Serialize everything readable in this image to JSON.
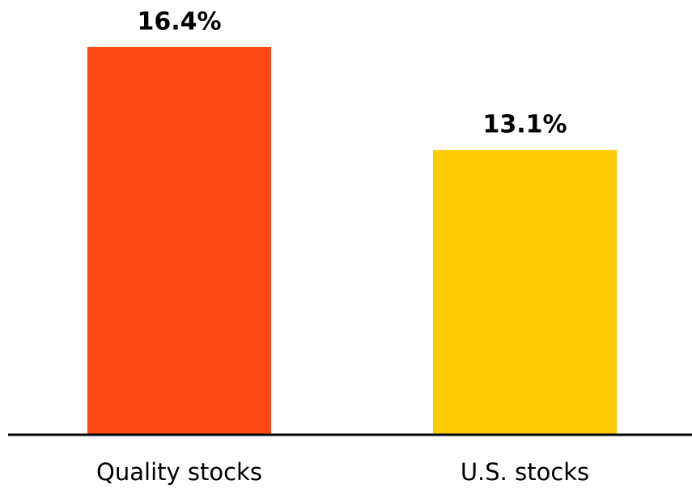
{
  "chart_data": {
    "type": "bar",
    "categories": [
      "Quality stocks",
      "U.S. stocks"
    ],
    "values": [
      16.4,
      13.1
    ],
    "value_labels": [
      "16.4%",
      "13.1%"
    ],
    "colors": [
      "#fc4814",
      "#fdcc02"
    ],
    "ylim": [
      4,
      17
    ]
  }
}
